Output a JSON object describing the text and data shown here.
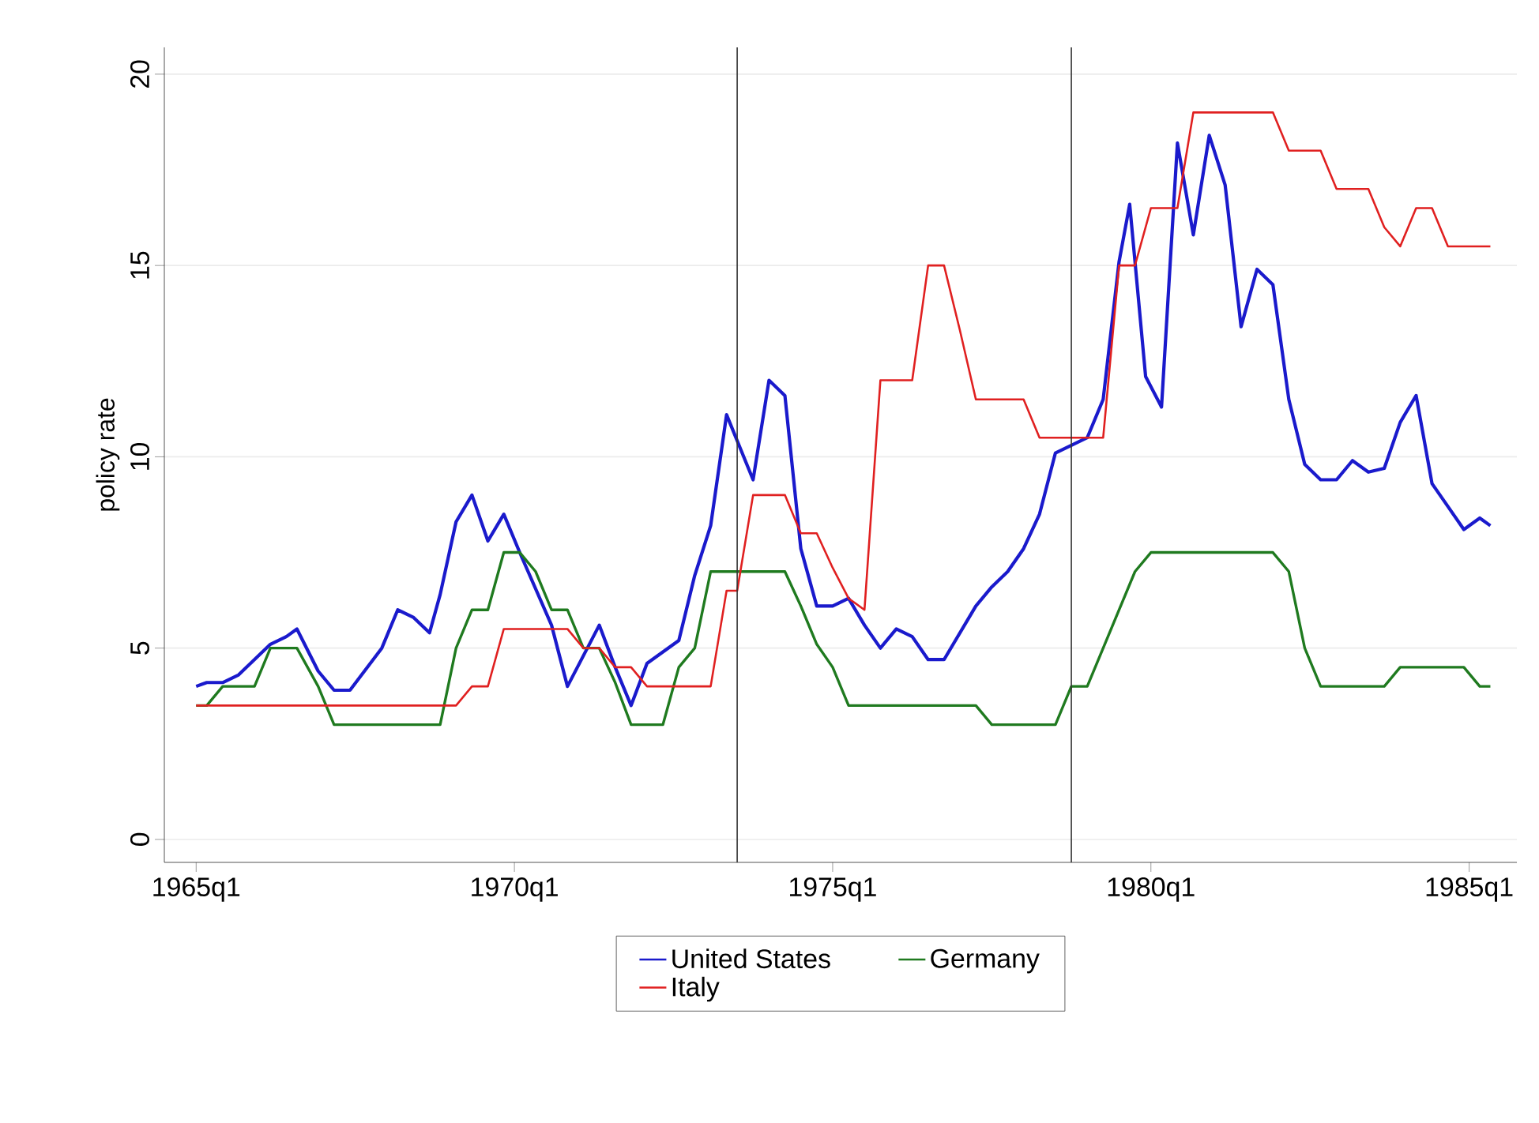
{
  "chart_data": {
    "type": "line",
    "ylabel": "policy rate",
    "xlim": [
      "1964-07",
      "1985-10"
    ],
    "ylim": [
      -0.6,
      20.7
    ],
    "xticks": [
      {
        "value": "1965-01",
        "label": "1965q1"
      },
      {
        "value": "1970-01",
        "label": "1970q1"
      },
      {
        "value": "1975-01",
        "label": "1975q1"
      },
      {
        "value": "1980-01",
        "label": "1980q1"
      },
      {
        "value": "1985-01",
        "label": "1985q1"
      }
    ],
    "yticks": [
      0,
      5,
      10,
      15,
      20
    ],
    "grid": "y",
    "legend": "bottom",
    "line_style": "solid",
    "ref_lines": [
      {
        "axis": "x",
        "value": "1973-07",
        "color": "#333333"
      },
      {
        "axis": "x",
        "value": "1978-10",
        "color": "#333333"
      }
    ],
    "series": [
      {
        "name": "United States",
        "color": "#1a1acc",
        "x": [
          "1965-01",
          "1965-03",
          "1965-06",
          "1965-09",
          "1966-03",
          "1966-06",
          "1966-08",
          "1966-12",
          "1967-03",
          "1967-06",
          "1967-12",
          "1968-03",
          "1968-06",
          "1968-09",
          "1968-11",
          "1969-02",
          "1969-05",
          "1969-08",
          "1969-11",
          "1970-02",
          "1970-08",
          "1970-11",
          "1971-02",
          "1971-05",
          "1971-08",
          "1971-11",
          "1972-02",
          "1972-08",
          "1972-11",
          "1973-02",
          "1973-05",
          "1973-10",
          "1974-01",
          "1974-04",
          "1974-07",
          "1974-10",
          "1975-01",
          "1975-04",
          "1975-07",
          "1975-10",
          "1976-01",
          "1976-04",
          "1976-07",
          "1976-10",
          "1977-01",
          "1977-04",
          "1977-07",
          "1977-10",
          "1978-01",
          "1978-04",
          "1978-07",
          "1978-10",
          "1979-01",
          "1979-04",
          "1979-07",
          "1979-09",
          "1979-12",
          "1980-03",
          "1980-06",
          "1980-09",
          "1980-12",
          "1981-03",
          "1981-06",
          "1981-09",
          "1981-12",
          "1982-03",
          "1982-06",
          "1982-09",
          "1982-12",
          "1983-03",
          "1983-06",
          "1983-09",
          "1983-12",
          "1984-03",
          "1984-06",
          "1984-09",
          "1984-12",
          "1985-03",
          "1985-05"
        ],
        "values": [
          4.0,
          4.1,
          4.1,
          4.3,
          5.1,
          5.3,
          5.5,
          4.4,
          3.9,
          3.9,
          5.0,
          6.0,
          5.8,
          5.4,
          6.4,
          8.3,
          9.0,
          7.8,
          8.5,
          7.5,
          5.6,
          4.0,
          4.8,
          5.6,
          4.5,
          3.5,
          4.6,
          5.2,
          6.9,
          8.2,
          11.1,
          9.4,
          12.0,
          11.6,
          7.6,
          6.1,
          6.1,
          6.3,
          5.6,
          5.0,
          5.5,
          5.3,
          4.7,
          4.7,
          5.4,
          6.1,
          6.6,
          7.0,
          7.6,
          8.5,
          10.1,
          10.3,
          10.5,
          11.5,
          15.1,
          16.6,
          12.1,
          11.3,
          18.2,
          15.8,
          18.4,
          17.1,
          13.4,
          14.9,
          14.5,
          11.5,
          9.8,
          9.4,
          9.4,
          9.9,
          9.6,
          9.7,
          10.9,
          11.6,
          9.3,
          8.7,
          8.1,
          8.4,
          8.2
        ]
      },
      {
        "name": "Germany",
        "color": "#1f7a1f",
        "x": [
          "1965-01",
          "1965-03",
          "1965-06",
          "1965-12",
          "1966-03",
          "1966-08",
          "1966-12",
          "1967-03",
          "1968-11",
          "1969-02",
          "1969-05",
          "1969-08",
          "1969-11",
          "1970-02",
          "1970-05",
          "1970-08",
          "1970-11",
          "1971-02",
          "1971-05",
          "1971-08",
          "1971-11",
          "1972-05",
          "1972-08",
          "1972-11",
          "1973-02",
          "1974-04",
          "1974-07",
          "1974-10",
          "1975-01",
          "1975-04",
          "1977-04",
          "1977-07",
          "1978-07",
          "1978-10",
          "1979-01",
          "1979-04",
          "1979-07",
          "1979-10",
          "1980-01",
          "1981-12",
          "1982-03",
          "1982-06",
          "1982-09",
          "1983-09",
          "1983-12",
          "1984-12",
          "1985-03",
          "1985-05"
        ],
        "values": [
          3.5,
          3.5,
          4.0,
          4.0,
          5.0,
          5.0,
          4.0,
          3.0,
          3.0,
          5.0,
          6.0,
          6.0,
          7.5,
          7.5,
          7.0,
          6.0,
          6.0,
          5.0,
          5.0,
          4.1,
          3.0,
          3.0,
          4.5,
          5.0,
          7.0,
          7.0,
          6.1,
          5.1,
          4.5,
          3.5,
          3.5,
          3.0,
          3.0,
          4.0,
          4.0,
          5.0,
          6.0,
          7.0,
          7.5,
          7.5,
          7.0,
          5.0,
          4.0,
          4.0,
          4.5,
          4.5,
          4.0,
          4.0
        ]
      },
      {
        "name": "Italy",
        "color": "#e02020",
        "x": [
          "1965-01",
          "1969-02",
          "1969-05",
          "1969-08",
          "1969-11",
          "1970-11",
          "1971-02",
          "1971-05",
          "1971-08",
          "1971-11",
          "1972-02",
          "1973-02",
          "1973-05",
          "1973-07",
          "1973-10",
          "1974-04",
          "1974-07",
          "1974-10",
          "1975-01",
          "1975-04",
          "1975-07",
          "1975-10",
          "1976-04",
          "1976-07",
          "1976-10",
          "1977-01",
          "1977-04",
          "1978-01",
          "1978-04",
          "1979-04",
          "1979-07",
          "1979-10",
          "1980-01",
          "1980-06",
          "1980-09",
          "1981-12",
          "1982-03",
          "1982-09",
          "1982-12",
          "1983-06",
          "1983-09",
          "1983-12",
          "1984-03",
          "1984-06",
          "1984-09",
          "1985-05"
        ],
        "values": [
          3.5,
          3.5,
          4.0,
          4.0,
          5.5,
          5.5,
          5.0,
          5.0,
          4.5,
          4.5,
          4.0,
          4.0,
          6.5,
          6.5,
          9.0,
          9.0,
          8.0,
          8.0,
          7.1,
          6.3,
          6.0,
          12.0,
          12.0,
          15.0,
          15.0,
          13.3,
          11.5,
          11.5,
          10.5,
          10.5,
          15.0,
          15.0,
          16.5,
          16.5,
          19.0,
          19.0,
          18.0,
          18.0,
          17.0,
          17.0,
          16.0,
          15.5,
          16.5,
          16.5,
          15.5,
          15.5
        ]
      }
    ]
  }
}
